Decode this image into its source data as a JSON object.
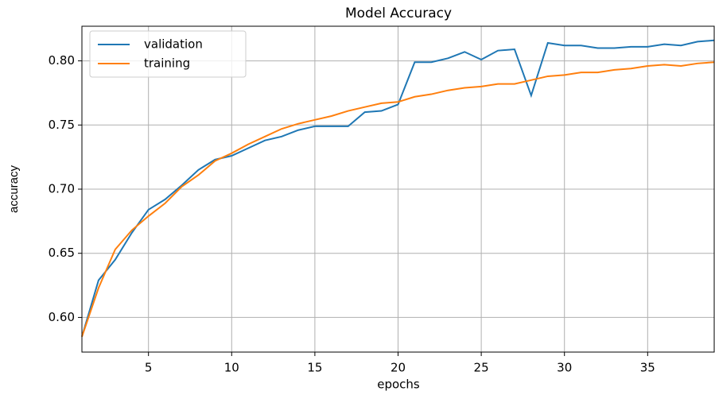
{
  "chart_data": {
    "type": "line",
    "title": "Model Accuracy",
    "x_label": "epochs",
    "y_label": "accuracy",
    "x": [
      1,
      2,
      3,
      4,
      5,
      6,
      7,
      8,
      9,
      10,
      11,
      12,
      13,
      14,
      15,
      16,
      17,
      18,
      19,
      20,
      21,
      22,
      23,
      24,
      25,
      26,
      27,
      28,
      29,
      30,
      31,
      32,
      33,
      34,
      35,
      36,
      37,
      38,
      39
    ],
    "series": [
      {
        "name": "validation",
        "color": "#1f77b4",
        "values": [
          0.585,
          0.629,
          0.645,
          0.666,
          0.684,
          0.692,
          0.703,
          0.715,
          0.723,
          0.726,
          0.732,
          0.738,
          0.741,
          0.746,
          0.749,
          0.749,
          0.749,
          0.76,
          0.761,
          0.766,
          0.799,
          0.799,
          0.802,
          0.807,
          0.801,
          0.808,
          0.809,
          0.773,
          0.814,
          0.812,
          0.812,
          0.81,
          0.81,
          0.811,
          0.811,
          0.813,
          0.812,
          0.815,
          0.816
        ]
      },
      {
        "name": "training",
        "color": "#ff7f0e",
        "values": [
          0.585,
          0.623,
          0.653,
          0.668,
          0.679,
          0.689,
          0.702,
          0.711,
          0.722,
          0.728,
          0.735,
          0.741,
          0.747,
          0.751,
          0.754,
          0.757,
          0.761,
          0.764,
          0.767,
          0.768,
          0.772,
          0.774,
          0.777,
          0.779,
          0.78,
          0.782,
          0.782,
          0.785,
          0.788,
          0.789,
          0.791,
          0.791,
          0.793,
          0.794,
          0.796,
          0.797,
          0.796,
          0.798,
          0.799
        ]
      }
    ],
    "xlim": [
      1,
      39
    ],
    "ylim": [
      0.573,
      0.827
    ],
    "xticks": [
      5,
      10,
      15,
      20,
      25,
      30,
      35
    ],
    "yticks": [
      {
        "value": 0.6,
        "label": "0.60"
      },
      {
        "value": 0.65,
        "label": "0.65"
      },
      {
        "value": 0.7,
        "label": "0.70"
      },
      {
        "value": 0.75,
        "label": "0.75"
      },
      {
        "value": 0.8,
        "label": "0.80"
      }
    ],
    "grid": true,
    "legend": "upper left"
  }
}
